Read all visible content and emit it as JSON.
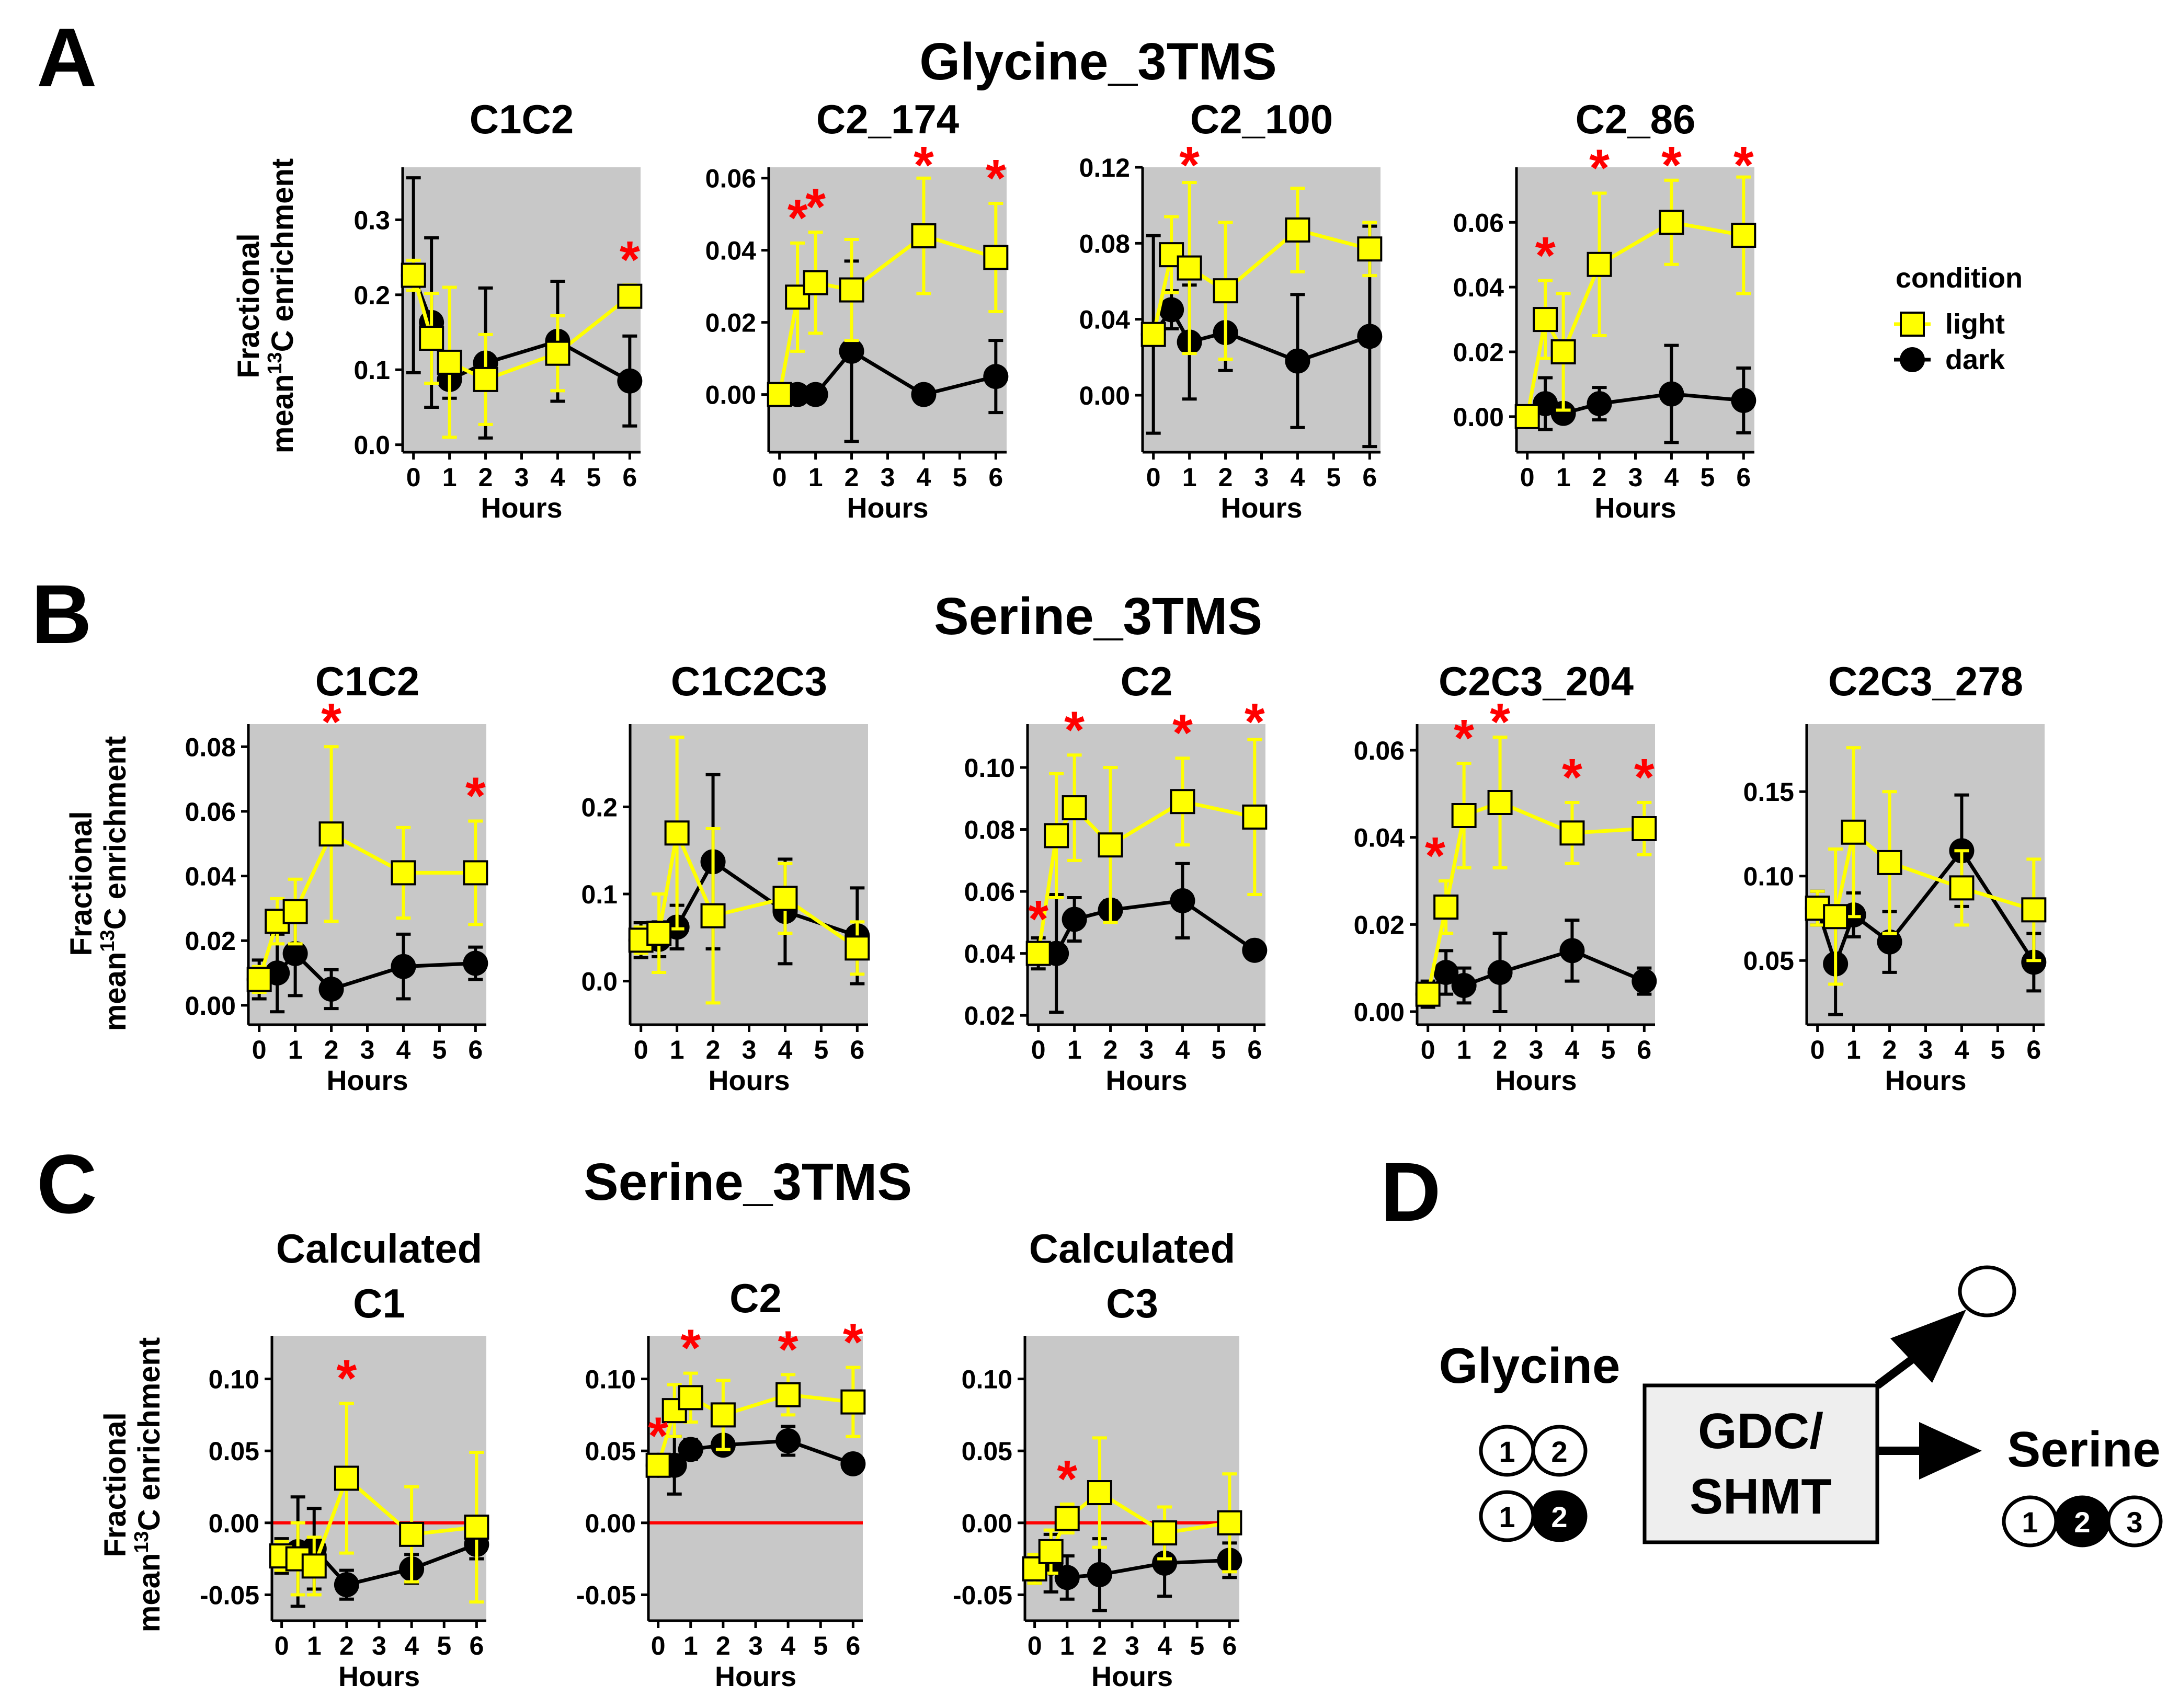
{
  "colors": {
    "panel_bg": "#c8c8c8",
    "light": "#ffff00",
    "dark": "#000000",
    "star": "#ff0000",
    "zero_line": "#ff0000",
    "box_fill": "#eeeeee"
  },
  "section_labels": [
    "A",
    "B",
    "C",
    "D"
  ],
  "section_titles": [
    "Glycine_3TMS",
    "Serine_3TMS",
    "Serine_3TMS"
  ],
  "y_axis_label": {
    "line1": "Fractional",
    "line2_pre": "mean",
    "line2_sup": "13",
    "line2_post": "C enrichment"
  },
  "x_axis_label": "Hours",
  "legend": {
    "title": "condition",
    "items": [
      {
        "label": "light",
        "color": "#ffff00"
      },
      {
        "label": "dark",
        "color": "#000000"
      }
    ]
  },
  "chart_data": [
    {
      "type": "line",
      "title": [
        "C1C2"
      ],
      "x_ticks": [
        0,
        1,
        2,
        3,
        4,
        5,
        6
      ],
      "xlim": [
        -0.3,
        6.3
      ],
      "ylim": [
        -0.01,
        0.37
      ],
      "y_ticks": [
        0.0,
        0.1,
        0.2,
        0.3
      ],
      "y_tick_labels": [
        "0.0",
        "0.1",
        "0.2",
        "0.3"
      ],
      "series": [
        {
          "name": "dark",
          "x": [
            0,
            0.5,
            1,
            2,
            4,
            6
          ],
          "y": [
            0.226,
            0.163,
            0.087,
            0.109,
            0.138,
            0.085
          ],
          "err": [
            0.13,
            0.113,
            0.025,
            0.1,
            0.08,
            0.06
          ]
        },
        {
          "name": "light",
          "x": [
            0,
            0.5,
            1,
            2,
            4,
            6
          ],
          "y": [
            0.226,
            0.142,
            0.11,
            0.087,
            0.122,
            0.198
          ],
          "err": [
            0.02,
            0.06,
            0.1,
            0.06,
            0.05,
            0.015
          ]
        }
      ],
      "stars": [
        6
      ]
    },
    {
      "type": "line",
      "title": [
        "C2_174"
      ],
      "x_ticks": [
        0,
        1,
        2,
        3,
        4,
        5,
        6
      ],
      "xlim": [
        -0.3,
        6.3
      ],
      "ylim": [
        -0.016,
        0.063
      ],
      "y_ticks": [
        0.0,
        0.02,
        0.04,
        0.06
      ],
      "y_tick_labels": [
        "0.00",
        "0.02",
        "0.04",
        "0.06"
      ],
      "series": [
        {
          "name": "dark",
          "x": [
            0,
            0.5,
            1,
            2,
            4,
            6
          ],
          "y": [
            0.0,
            0.0,
            0.0,
            0.012,
            0.0,
            0.005
          ],
          "err": [
            0.001,
            0.001,
            0.001,
            0.025,
            0.001,
            0.01
          ]
        },
        {
          "name": "light",
          "x": [
            0,
            0.5,
            1,
            2,
            4,
            6
          ],
          "y": [
            0.0,
            0.027,
            0.031,
            0.029,
            0.044,
            0.038
          ],
          "err": [
            0.001,
            0.015,
            0.014,
            0.014,
            0.016,
            0.015
          ]
        }
      ],
      "stars": [
        0.5,
        1,
        4,
        6
      ]
    },
    {
      "type": "line",
      "title": [
        "C2_100"
      ],
      "x_ticks": [
        0,
        1,
        2,
        3,
        4,
        5,
        6
      ],
      "xlim": [
        -0.3,
        6.3
      ],
      "ylim": [
        -0.03,
        0.12
      ],
      "y_ticks": [
        0.0,
        0.04,
        0.08,
        0.12
      ],
      "y_tick_labels": [
        "0.00",
        "0.04",
        "0.08",
        "0.12"
      ],
      "series": [
        {
          "name": "dark",
          "x": [
            0,
            0.5,
            1,
            2,
            4,
            6
          ],
          "y": [
            0.032,
            0.045,
            0.028,
            0.033,
            0.018,
            0.031
          ],
          "err": [
            0.052,
            0.01,
            0.03,
            0.02,
            0.035,
            0.058
          ]
        },
        {
          "name": "light",
          "x": [
            0,
            0.5,
            1,
            2,
            4,
            6
          ],
          "y": [
            0.032,
            0.074,
            0.067,
            0.055,
            0.087,
            0.077
          ],
          "err": [
            0.002,
            0.02,
            0.045,
            0.036,
            0.022,
            0.014
          ]
        }
      ],
      "stars": [
        1
      ]
    },
    {
      "type": "line",
      "title": [
        "C2_86"
      ],
      "x_ticks": [
        0,
        1,
        2,
        3,
        4,
        5,
        6
      ],
      "xlim": [
        -0.3,
        6.3
      ],
      "ylim": [
        -0.011,
        0.077
      ],
      "y_ticks": [
        0.0,
        0.02,
        0.04,
        0.06
      ],
      "y_tick_labels": [
        "0.00",
        "0.02",
        "0.04",
        "0.06"
      ],
      "series": [
        {
          "name": "dark",
          "x": [
            0,
            0.5,
            1,
            2,
            4,
            6
          ],
          "y": [
            0.0,
            0.004,
            0.001,
            0.004,
            0.007,
            0.005
          ],
          "err": [
            0.002,
            0.008,
            0.002,
            0.005,
            0.015,
            0.01
          ]
        },
        {
          "name": "light",
          "x": [
            0,
            0.5,
            1,
            2,
            4,
            6
          ],
          "y": [
            0.0,
            0.03,
            0.02,
            0.047,
            0.06,
            0.056
          ],
          "err": [
            0.001,
            0.012,
            0.018,
            0.022,
            0.013,
            0.018
          ]
        }
      ],
      "stars": [
        0.5,
        2,
        4,
        6
      ]
    },
    {
      "type": "line",
      "title": [
        "C1C2"
      ],
      "x_ticks": [
        0,
        1,
        2,
        3,
        4,
        5,
        6
      ],
      "xlim": [
        -0.3,
        6.3
      ],
      "ylim": [
        -0.006,
        0.087
      ],
      "y_ticks": [
        0.0,
        0.02,
        0.04,
        0.06,
        0.08
      ],
      "y_tick_labels": [
        "0.00",
        "0.02",
        "0.04",
        "0.06",
        "0.08"
      ],
      "series": [
        {
          "name": "dark",
          "x": [
            0,
            0.5,
            1,
            2,
            4,
            6
          ],
          "y": [
            0.008,
            0.01,
            0.016,
            0.005,
            0.012,
            0.013
          ],
          "err": [
            0.006,
            0.012,
            0.013,
            0.006,
            0.01,
            0.005
          ]
        },
        {
          "name": "light",
          "x": [
            0,
            0.5,
            1,
            2,
            4,
            6
          ],
          "y": [
            0.008,
            0.026,
            0.029,
            0.053,
            0.041,
            0.041
          ],
          "err": [
            0.004,
            0.007,
            0.01,
            0.027,
            0.014,
            0.016
          ]
        }
      ],
      "stars": [
        2,
        6
      ]
    },
    {
      "type": "line",
      "title": [
        "C1C2C3"
      ],
      "x_ticks": [
        0,
        1,
        2,
        3,
        4,
        5,
        6
      ],
      "xlim": [
        -0.3,
        6.3
      ],
      "ylim": [
        -0.05,
        0.295
      ],
      "y_ticks": [
        0.0,
        0.1,
        0.2
      ],
      "y_tick_labels": [
        "0.0",
        "0.1",
        "0.2"
      ],
      "series": [
        {
          "name": "dark",
          "x": [
            0,
            0.5,
            1,
            2,
            4,
            6
          ],
          "y": [
            0.047,
            0.048,
            0.062,
            0.137,
            0.08,
            0.052
          ],
          "err": [
            0.02,
            0.02,
            0.025,
            0.1,
            0.06,
            0.055
          ]
        },
        {
          "name": "light",
          "x": [
            0,
            0.5,
            1,
            2,
            4,
            6
          ],
          "y": [
            0.047,
            0.055,
            0.17,
            0.075,
            0.095,
            0.038
          ],
          "err": [
            0.015,
            0.045,
            0.11,
            0.1,
            0.04,
            0.03
          ]
        }
      ],
      "stars": []
    },
    {
      "type": "line",
      "title": [
        "C2"
      ],
      "x_ticks": [
        0,
        1,
        2,
        3,
        4,
        5,
        6
      ],
      "xlim": [
        -0.3,
        6.3
      ],
      "ylim": [
        0.017,
        0.114
      ],
      "y_ticks": [
        0.02,
        0.04,
        0.06,
        0.08,
        0.1
      ],
      "y_tick_labels": [
        "0.02",
        "0.04",
        "0.06",
        "0.08",
        "0.10"
      ],
      "series": [
        {
          "name": "dark",
          "x": [
            0,
            0.5,
            1,
            2,
            4,
            6
          ],
          "y": [
            0.04,
            0.04,
            0.051,
            0.054,
            0.057,
            0.041
          ],
          "err": [
            0.005,
            0.019,
            0.007,
            0.003,
            0.012,
            0.002
          ]
        },
        {
          "name": "light",
          "x": [
            0,
            0.5,
            1,
            2,
            4,
            6
          ],
          "y": [
            0.04,
            0.078,
            0.087,
            0.075,
            0.089,
            0.084
          ],
          "err": [
            0.003,
            0.02,
            0.017,
            0.025,
            0.014,
            0.025
          ]
        }
      ],
      "stars": [
        0,
        1,
        4,
        6
      ]
    },
    {
      "type": "line",
      "title": [
        "C2C3_204"
      ],
      "x_ticks": [
        0,
        1,
        2,
        3,
        4,
        5,
        6
      ],
      "xlim": [
        -0.3,
        6.3
      ],
      "ylim": [
        -0.003,
        0.066
      ],
      "y_ticks": [
        0.0,
        0.02,
        0.04,
        0.06
      ],
      "y_tick_labels": [
        "0.00",
        "0.02",
        "0.04",
        "0.06"
      ],
      "series": [
        {
          "name": "dark",
          "x": [
            0,
            0.5,
            1,
            2,
            4,
            6
          ],
          "y": [
            0.004,
            0.009,
            0.006,
            0.009,
            0.014,
            0.007
          ],
          "err": [
            0.003,
            0.005,
            0.004,
            0.009,
            0.007,
            0.003
          ]
        },
        {
          "name": "light",
          "x": [
            0,
            0.5,
            1,
            2,
            4,
            6
          ],
          "y": [
            0.004,
            0.024,
            0.045,
            0.048,
            0.041,
            0.042
          ],
          "err": [
            0.002,
            0.006,
            0.012,
            0.015,
            0.007,
            0.006
          ]
        }
      ],
      "stars": [
        0.2,
        1,
        2,
        4,
        6
      ]
    },
    {
      "type": "line",
      "title": [
        "C2C3_278"
      ],
      "x_ticks": [
        0,
        1,
        2,
        3,
        4,
        5,
        6
      ],
      "xlim": [
        -0.3,
        6.3
      ],
      "ylim": [
        0.012,
        0.19
      ],
      "y_ticks": [
        0.05,
        0.1,
        0.15
      ],
      "y_tick_labels": [
        "0.05",
        "0.10",
        "0.15"
      ],
      "series": [
        {
          "name": "dark",
          "x": [
            0,
            0.5,
            1,
            2,
            4,
            6
          ],
          "y": [
            0.081,
            0.048,
            0.077,
            0.061,
            0.115,
            0.049
          ],
          "err": [
            0.01,
            0.03,
            0.013,
            0.018,
            0.033,
            0.017
          ]
        },
        {
          "name": "light",
          "x": [
            0,
            0.5,
            1,
            2,
            4,
            6
          ],
          "y": [
            0.081,
            0.076,
            0.126,
            0.108,
            0.093,
            0.08
          ],
          "err": [
            0.01,
            0.04,
            0.05,
            0.042,
            0.022,
            0.03
          ]
        }
      ],
      "stars": []
    },
    {
      "type": "line",
      "title": [
        "Calculated",
        "C1"
      ],
      "x_ticks": [
        0,
        1,
        2,
        3,
        4,
        5,
        6
      ],
      "xlim": [
        -0.3,
        6.3
      ],
      "ylim": [
        -0.068,
        0.13
      ],
      "y_ticks": [
        -0.05,
        0.0,
        0.05,
        0.1
      ],
      "y_tick_labels": [
        "-0.05",
        "0.00",
        "0.05",
        "0.10"
      ],
      "zero_line": true,
      "series": [
        {
          "name": "dark",
          "x": [
            0,
            0.5,
            1,
            2,
            4,
            6
          ],
          "y": [
            -0.023,
            -0.02,
            -0.018,
            -0.043,
            -0.032,
            -0.015
          ],
          "err": [
            0.012,
            0.038,
            0.028,
            0.01,
            0.01,
            0.01
          ]
        },
        {
          "name": "light",
          "x": [
            0,
            0.5,
            1,
            2,
            4,
            6
          ],
          "y": [
            -0.023,
            -0.025,
            -0.03,
            0.031,
            -0.008,
            -0.003
          ],
          "err": [
            0.01,
            0.025,
            0.02,
            0.052,
            0.033,
            0.052
          ]
        }
      ],
      "stars": [
        2
      ]
    },
    {
      "type": "line",
      "title": [
        "C2"
      ],
      "x_ticks": [
        0,
        1,
        2,
        3,
        4,
        5,
        6
      ],
      "xlim": [
        -0.3,
        6.3
      ],
      "ylim": [
        -0.068,
        0.13
      ],
      "y_ticks": [
        -0.05,
        0.0,
        0.05,
        0.1
      ],
      "y_tick_labels": [
        "-0.05",
        "0.00",
        "0.05",
        "0.10"
      ],
      "zero_line": true,
      "series": [
        {
          "name": "dark",
          "x": [
            0,
            0.5,
            1,
            2,
            4,
            6
          ],
          "y": [
            0.04,
            0.04,
            0.051,
            0.054,
            0.057,
            0.041
          ],
          "err": [
            0.005,
            0.02,
            0.007,
            0.003,
            0.01,
            0.002
          ]
        },
        {
          "name": "light",
          "x": [
            0,
            0.5,
            1,
            2,
            4,
            6
          ],
          "y": [
            0.04,
            0.078,
            0.087,
            0.075,
            0.089,
            0.084
          ],
          "err": [
            0.003,
            0.018,
            0.017,
            0.024,
            0.014,
            0.024
          ]
        }
      ],
      "stars": [
        0,
        1,
        4,
        6
      ]
    },
    {
      "type": "line",
      "title": [
        "Calculated",
        "C3"
      ],
      "x_ticks": [
        0,
        1,
        2,
        3,
        4,
        5,
        6
      ],
      "xlim": [
        -0.3,
        6.3
      ],
      "ylim": [
        -0.068,
        0.13
      ],
      "y_ticks": [
        -0.05,
        0.0,
        0.05,
        0.1
      ],
      "y_tick_labels": [
        "-0.05",
        "0.00",
        "0.05",
        "0.10"
      ],
      "zero_line": true,
      "series": [
        {
          "name": "dark",
          "x": [
            0,
            0.5,
            1,
            2,
            4,
            6
          ],
          "y": [
            -0.032,
            -0.028,
            -0.038,
            -0.036,
            -0.028,
            -0.026
          ],
          "err": [
            0.01,
            0.02,
            0.015,
            0.025,
            0.023,
            0.012
          ]
        },
        {
          "name": "light",
          "x": [
            0,
            0.5,
            1,
            2,
            4,
            6
          ],
          "y": [
            -0.032,
            -0.02,
            0.003,
            0.021,
            -0.007,
            0.0
          ],
          "err": [
            0.01,
            0.015,
            0.01,
            0.038,
            0.018,
            0.034
          ]
        }
      ],
      "stars": [
        1
      ]
    }
  ],
  "diagram": {
    "glycine_label": "Glycine",
    "serine_label": "Serine",
    "enzyme_line1": "GDC/",
    "enzyme_line2": "SHMT",
    "glycine_rows": [
      [
        {
          "t": "1",
          "filled": false
        },
        {
          "t": "2",
          "filled": false
        }
      ],
      [
        {
          "t": "1",
          "filled": false
        },
        {
          "t": "2",
          "filled": true
        }
      ]
    ],
    "serine_atoms": [
      {
        "t": "1",
        "filled": false
      },
      {
        "t": "2",
        "filled": true
      },
      {
        "t": "3",
        "filled": false
      }
    ]
  }
}
